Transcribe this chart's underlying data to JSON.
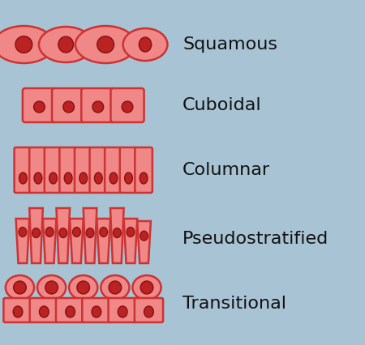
{
  "background_color": "#a8c4d4",
  "cell_fill": "#f08888",
  "cell_edge": "#cc3333",
  "nucleus_fill": "#bb2222",
  "nucleus_edge": "#881111",
  "text_color": "#111111",
  "labels": [
    "Squamous",
    "Cuboidal",
    "Columnar",
    "Pseudostratified",
    "Transitional"
  ],
  "label_fontsize": 16,
  "figsize": [
    4.5,
    4.26
  ],
  "dpi": 100
}
